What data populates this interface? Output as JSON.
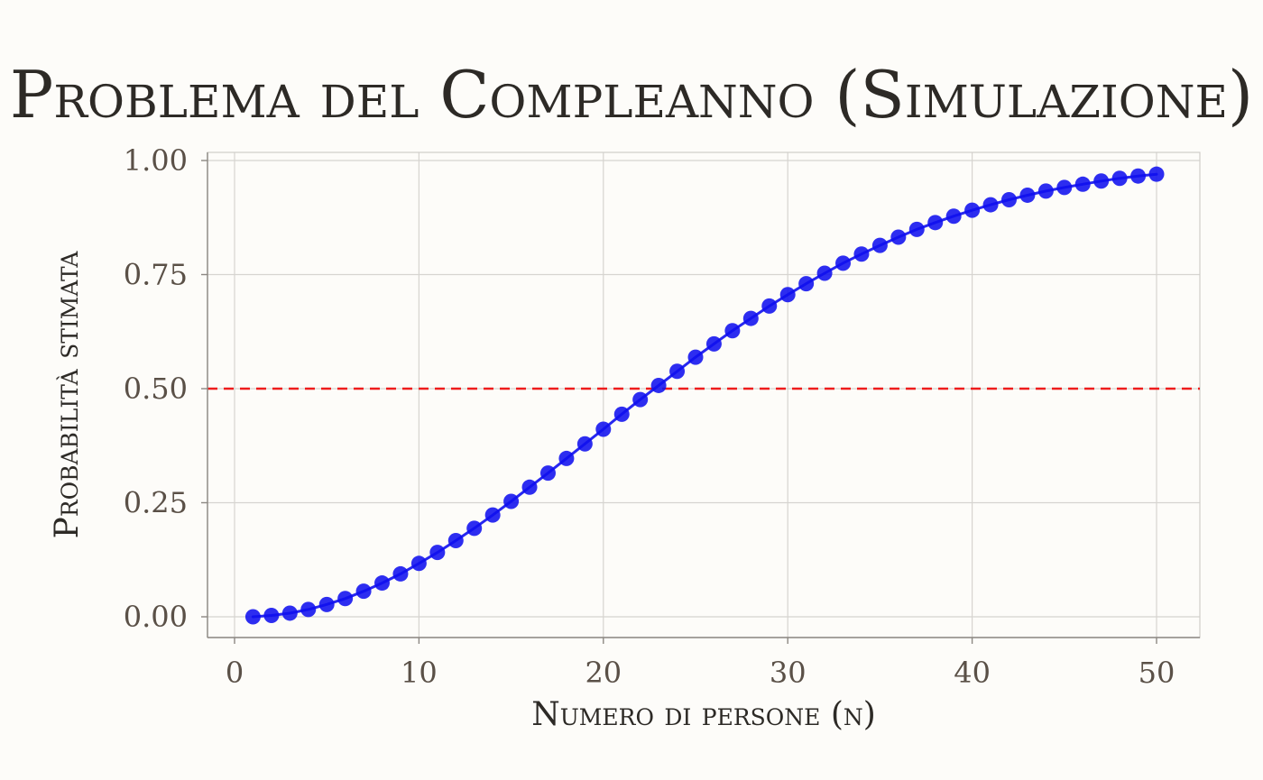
{
  "chart_data": {
    "type": "line",
    "title": "Problema del Compleanno (Simulazione)",
    "xlabel": "Numero di persone (n)",
    "ylabel": "Probabilità stimata",
    "xlim": [
      0,
      50
    ],
    "ylim": [
      0,
      1
    ],
    "x_ticks": [
      0,
      10,
      20,
      30,
      40,
      50
    ],
    "x_tick_labels": [
      "0",
      "10",
      "20",
      "30",
      "40",
      "50"
    ],
    "y_ticks": [
      0,
      0.25,
      0.5,
      0.75,
      1.0
    ],
    "y_tick_labels": [
      "0.00",
      "0.25",
      "0.50",
      "0.75",
      "1.00"
    ],
    "grid": true,
    "reference_line": {
      "y": 0.5,
      "style": "dashed",
      "color": "#ee1c1c"
    },
    "series": [
      {
        "color": "#1010ee",
        "markers": true,
        "x": [
          1,
          2,
          3,
          4,
          5,
          6,
          7,
          8,
          9,
          10,
          11,
          12,
          13,
          14,
          15,
          16,
          17,
          18,
          19,
          20,
          21,
          22,
          23,
          24,
          25,
          26,
          27,
          28,
          29,
          30,
          31,
          32,
          33,
          34,
          35,
          36,
          37,
          38,
          39,
          40,
          41,
          42,
          43,
          44,
          45,
          46,
          47,
          48,
          49,
          50
        ],
        "values": [
          0.0,
          0.003,
          0.008,
          0.016,
          0.027,
          0.04,
          0.056,
          0.074,
          0.094,
          0.117,
          0.141,
          0.167,
          0.194,
          0.223,
          0.253,
          0.284,
          0.315,
          0.347,
          0.379,
          0.411,
          0.444,
          0.476,
          0.507,
          0.538,
          0.569,
          0.598,
          0.627,
          0.654,
          0.681,
          0.706,
          0.73,
          0.753,
          0.775,
          0.795,
          0.814,
          0.832,
          0.849,
          0.864,
          0.878,
          0.891,
          0.903,
          0.914,
          0.924,
          0.933,
          0.941,
          0.948,
          0.955,
          0.961,
          0.966,
          0.97
        ]
      }
    ]
  }
}
